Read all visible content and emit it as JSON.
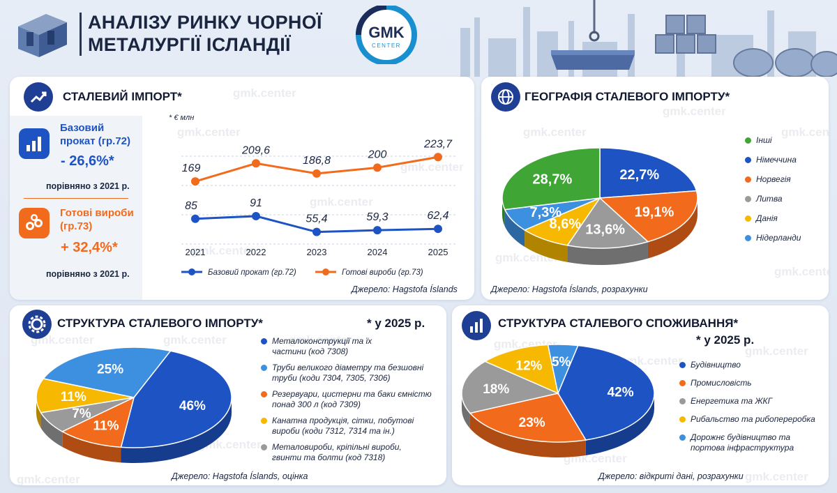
{
  "header": {
    "title_line1": "АНАЛІЗУ РИНКУ ЧОРНОЇ",
    "title_line2": "МЕТАЛУРГІЇ ІСЛАНДІЇ",
    "logo_text": "GMK",
    "logo_subtext": "CENTER"
  },
  "watermark": "gmk.center",
  "colors": {
    "navy": "#1f3f94",
    "blue": "#1e53c4",
    "orange": "#f26a1b",
    "green": "#3fa535",
    "gray": "#9a9a9a",
    "yellow": "#f6b800",
    "lightblue": "#3d8fe0"
  },
  "import_card": {
    "title": "СТАЛЕВИЙ ІМПОРТ*",
    "kpi1": {
      "label1": "Базовий",
      "label2": "прокат (гр.72)",
      "value": "- 26,6%*",
      "note": "порівняно з 2021 р."
    },
    "kpi2": {
      "label1": "Готові вироби",
      "label2": "(гр.73)",
      "value": "+ 32,4%*",
      "note": "порівняно з 2021 р."
    },
    "unit": "* € млн",
    "source": "Джерело: Hagstofa Íslands"
  },
  "geo_card": {
    "title": "ГЕОГРАФІЯ СТАЛЕВОГО ІМПОРТУ*",
    "source": "Джерело: Hagstofa Íslands, розрахунки"
  },
  "structure_card": {
    "title": "СТРУКТУРА СТАЛЕВОГО ІМПОРТУ*",
    "year_note": "* у 2025 р.",
    "source": "Джерело: Hagstofa Íslands, оцінка"
  },
  "consumption_card": {
    "title": "СТРУКТУРА СТАЛЕВОГО СПОЖИВАННЯ*",
    "year_note": "* у 2025 р.",
    "source": "Джерело: відкриті дані, розрахунки"
  },
  "chart_data": [
    {
      "type": "line",
      "x": [
        "2021",
        "2022",
        "2023",
        "2024",
        "2025"
      ],
      "series": [
        {
          "name": "Базовий прокат (гр.72)",
          "values": [
            85,
            91,
            55.4,
            59.3,
            62.4
          ],
          "labels": [
            "85",
            "91",
            "55,4",
            "59,3",
            "62,4"
          ],
          "color": "#1e53c4"
        },
        {
          "name": "Готові вироби (гр.73)",
          "values": [
            169,
            209.6,
            186.8,
            200,
            223.7
          ],
          "labels": [
            "169",
            "209,6",
            "186,8",
            "200",
            "223,7"
          ],
          "color": "#f26a1b"
        }
      ],
      "ylabel": "* € млн",
      "legend": "bottom"
    },
    {
      "type": "pie",
      "slices": [
        {
          "name": "Німеччина",
          "value": 22.7,
          "label": "22,7%",
          "color": "#1e53c4"
        },
        {
          "name": "Норвегія",
          "value": 19.1,
          "label": "19,1%",
          "color": "#f26a1b"
        },
        {
          "name": "Литва",
          "value": 13.6,
          "label": "13,6%",
          "color": "#9a9a9a"
        },
        {
          "name": "Данія",
          "value": 8.6,
          "label": "8,6%",
          "color": "#f6b800"
        },
        {
          "name": "Нідерланди",
          "value": 7.3,
          "label": "7,3%",
          "color": "#3d8fe0"
        },
        {
          "name": "Інші",
          "value": 28.7,
          "label": "28,7%",
          "color": "#3fa535"
        }
      ],
      "legend_order": [
        "Інші",
        "Німеччина",
        "Норвегія",
        "Литва",
        "Данія",
        "Нідерланди"
      ],
      "legend": "right"
    },
    {
      "type": "pie",
      "slices": [
        {
          "name": "Металоконструкції та їх частини (код 7308)",
          "value": 46,
          "label": "46%",
          "color": "#1e53c4"
        },
        {
          "name": "Резервуари, цистерни та баки ємністю понад 300 л (код 7309)",
          "value": 11,
          "label": "11%",
          "color": "#f26a1b"
        },
        {
          "name": "Метаковироби, кріпільні вироби, гвинти та болти (код 7318)",
          "value": 7,
          "label": "7%",
          "color": "#9a9a9a"
        },
        {
          "name": "Канатна продукція, сітки, побутові вироби (коди 7312, 7314 та ін.)",
          "value": 11,
          "label": "11%",
          "color": "#f6b800"
        },
        {
          "name": "Труби великого діаметру та безшовні труби (коди 7304, 7305, 7306)",
          "value": 25,
          "label": "25%",
          "color": "#3d8fe0"
        }
      ],
      "legend_items": [
        {
          "line1": "Металоконструкції та їх",
          "line2": "частини (код 7308)",
          "color": "#1e53c4"
        },
        {
          "line1": "Труби великого діаметру та безшовні",
          "line2": "труби (коди 7304, 7305, 7306)",
          "color": "#3d8fe0"
        },
        {
          "line1": "Резервуари, цистерни та баки ємністю",
          "line2": "понад 300 л (код 7309)",
          "color": "#f26a1b"
        },
        {
          "line1": "Канатна продукція, сітки, побутові",
          "line2": "вироби (коди 7312, 7314 та ін.)",
          "color": "#f6b800"
        },
        {
          "line1": "Металовироби, кріпільні вироби,",
          "line2": "гвинти та болти (код 7318)",
          "color": "#9a9a9a"
        }
      ],
      "legend": "right"
    },
    {
      "type": "pie",
      "slices": [
        {
          "name": "Будівництво",
          "value": 42,
          "label": "42%",
          "color": "#1e53c4"
        },
        {
          "name": "Промисловість",
          "value": 23,
          "label": "23%",
          "color": "#f26a1b"
        },
        {
          "name": "Енергетика та ЖКГ",
          "value": 18,
          "label": "18%",
          "color": "#9a9a9a"
        },
        {
          "name": "Рибальство та рибопереробка",
          "value": 12,
          "label": "12%",
          "color": "#f6b800"
        },
        {
          "name": "Дорожнє будівництво та портова інфраструктура",
          "value": 5,
          "label": "5%",
          "color": "#3d8fe0"
        }
      ],
      "legend_items": [
        {
          "line1": "Будівництво",
          "line2": "",
          "color": "#1e53c4"
        },
        {
          "line1": "Промисловість",
          "line2": "",
          "color": "#f26a1b"
        },
        {
          "line1": "Енергетика та ЖКГ",
          "line2": "",
          "color": "#9a9a9a"
        },
        {
          "line1": "Рибальство та рибопереробка",
          "line2": "",
          "color": "#f6b800"
        },
        {
          "line1": "Дорожнє будівництво та",
          "line2": "портова інфраструктура",
          "color": "#3d8fe0"
        }
      ],
      "legend": "right"
    }
  ]
}
